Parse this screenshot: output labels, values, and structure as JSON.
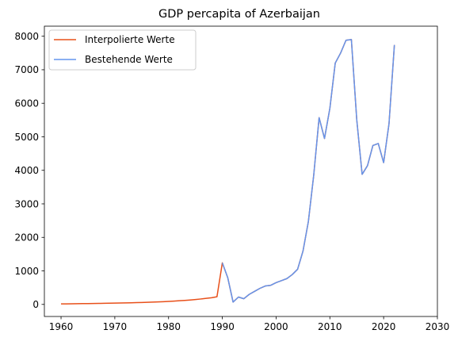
{
  "chart_data": {
    "type": "line",
    "title": "GDP percapita of Azerbaijan",
    "xlabel": "",
    "ylabel": "",
    "xlim": [
      1956.9,
      2030
    ],
    "ylim": [
      -360,
      8300
    ],
    "x_ticks": [
      1960,
      1970,
      1980,
      1990,
      2000,
      2010,
      2020,
      2030
    ],
    "y_ticks": [
      0,
      1000,
      2000,
      3000,
      4000,
      5000,
      6000,
      7000,
      8000
    ],
    "grid": false,
    "legend_position": "top-left",
    "series": [
      {
        "name": "Interpolierte Werte",
        "color": "#e8501a",
        "x": [
          1960,
          1961,
          1962,
          1963,
          1964,
          1965,
          1966,
          1967,
          1968,
          1969,
          1970,
          1971,
          1972,
          1973,
          1974,
          1975,
          1976,
          1977,
          1978,
          1979,
          1980,
          1981,
          1982,
          1983,
          1984,
          1985,
          1986,
          1987,
          1988,
          1989,
          1990,
          1991,
          1992,
          1993,
          1994,
          1995,
          1996,
          1997,
          1998,
          1999,
          2000,
          2001,
          2002,
          2003,
          2004,
          2005,
          2006,
          2007,
          2008,
          2009,
          2010,
          2011,
          2012,
          2013,
          2014,
          2015,
          2016,
          2017,
          2018,
          2019,
          2020,
          2021,
          2022
        ],
        "y": [
          15,
          17,
          19,
          21,
          23,
          25,
          27,
          29,
          32,
          35,
          38,
          41,
          45,
          49,
          53,
          58,
          63,
          69,
          75,
          82,
          90,
          99,
          109,
          120,
          132,
          146,
          162,
          180,
          200,
          228,
          1240,
          800,
          70,
          220,
          170,
          300,
          390,
          480,
          550,
          570,
          650,
          710,
          770,
          890,
          1050,
          1590,
          2470,
          3860,
          5570,
          4950,
          5850,
          7200,
          7500,
          7880,
          7900,
          5510,
          3880,
          4140,
          4740,
          4800,
          4230,
          5390,
          7740
        ]
      },
      {
        "name": "Bestehende Werte",
        "color": "#6495ed",
        "x": [
          1990,
          1991,
          1992,
          1993,
          1994,
          1995,
          1996,
          1997,
          1998,
          1999,
          2000,
          2001,
          2002,
          2003,
          2004,
          2005,
          2006,
          2007,
          2008,
          2009,
          2010,
          2011,
          2012,
          2013,
          2014,
          2015,
          2016,
          2017,
          2018,
          2019,
          2020,
          2021,
          2022
        ],
        "y": [
          1240,
          800,
          70,
          220,
          170,
          300,
          390,
          480,
          550,
          570,
          650,
          710,
          770,
          890,
          1050,
          1590,
          2470,
          3860,
          5570,
          4950,
          5850,
          7200,
          7500,
          7880,
          7900,
          5510,
          3880,
          4140,
          4740,
          4800,
          4230,
          5390,
          7740
        ]
      }
    ]
  }
}
